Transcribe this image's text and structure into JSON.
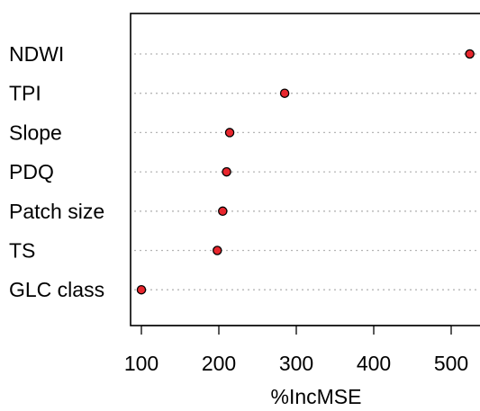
{
  "chart_data": {
    "type": "scatter",
    "subtype": "dotchart",
    "xlabel": "%IncMSE",
    "xlim": [
      88,
      535
    ],
    "x_ticks": [
      100,
      200,
      300,
      400,
      500
    ],
    "grid": "horizontal dotted guide lines",
    "point_color": "#e8262d",
    "point_edge_color": "#000000",
    "categories": [
      "NDWI",
      "TPI",
      "Slope",
      "PDQ",
      "Patch size",
      "TS",
      "GLC class"
    ],
    "values": [
      524,
      285,
      214,
      210,
      205,
      198,
      100
    ]
  }
}
